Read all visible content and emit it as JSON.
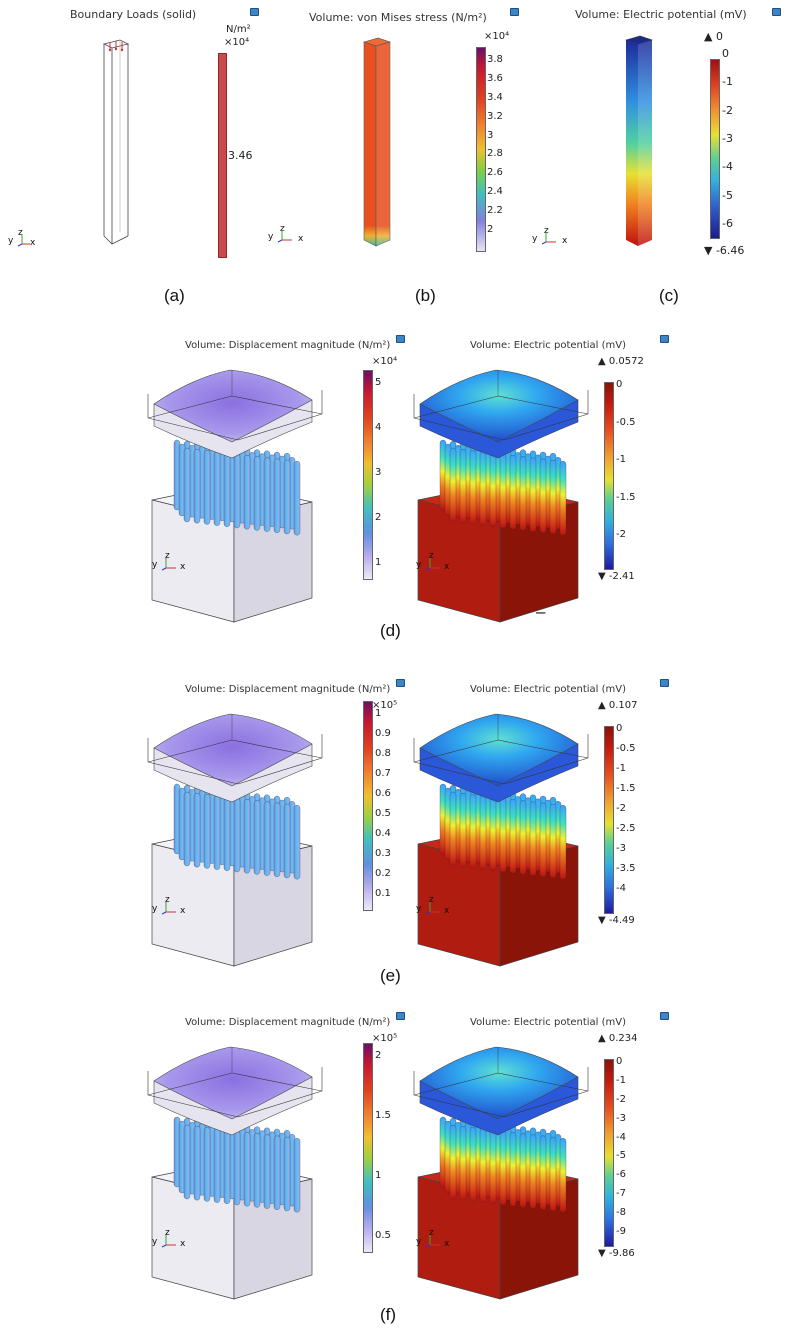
{
  "panel_a": {
    "title": "Boundary Loads (solid)",
    "unit_line1": "N/m²",
    "unit_line2": "×10⁴",
    "value_label": "3.46",
    "caption": "(a)"
  },
  "panel_b": {
    "title": "Volume: von Mises stress (N/m²)",
    "multiplier": "×10⁴",
    "ticks": [
      "3.8",
      "3.6",
      "3.4",
      "3.2",
      "3",
      "2.8",
      "2.6",
      "2.4",
      "2.2",
      "2"
    ],
    "caption": "(b)"
  },
  "panel_c": {
    "title": "Volume: Electric potential (mV)",
    "max_marker": "▲ 0",
    "min_marker": "▼ -6.46",
    "ticks": [
      "0",
      "-1",
      "-2",
      "-3",
      "-4",
      "-5",
      "-6"
    ],
    "caption": "(c)"
  },
  "row_d": {
    "disp_title": "Volume: Displacement magnitude (N/m²)",
    "disp_multiplier": "×10⁴",
    "disp_ticks": [
      "5",
      "4",
      "3",
      "2",
      "1"
    ],
    "pot_title": "Volume: Electric potential (mV)",
    "max_marker": "▲ 0.0572",
    "min_marker": "▼ -2.41",
    "pot_ticks": [
      "0",
      "-0.5",
      "-1",
      "-1.5",
      "-2"
    ],
    "caption": "(d)",
    "stray_mark": "–"
  },
  "row_e": {
    "disp_title": "Volume: Displacement magnitude (N/m²)",
    "disp_multiplier": "×10⁵",
    "disp_ticks": [
      "1",
      "0.9",
      "0.8",
      "0.7",
      "0.6",
      "0.5",
      "0.4",
      "0.3",
      "0.2",
      "0.1"
    ],
    "pot_title": "Volume: Electric potential (mV)",
    "max_marker": "▲ 0.107",
    "min_marker": "▼ -4.49",
    "pot_ticks": [
      "0",
      "-0.5",
      "-1",
      "-1.5",
      "-2",
      "-2.5",
      "-3",
      "-3.5",
      "-4"
    ],
    "caption": "(e)"
  },
  "row_f": {
    "disp_title": "Volume: Displacement magnitude (N/m²)",
    "disp_multiplier": "×10⁵",
    "disp_ticks": [
      "2",
      "1.5",
      "1",
      "0.5"
    ],
    "pot_title": "Volume: Electric potential (mV)",
    "max_marker": "▲ 0.234",
    "min_marker": "▼ -9.86",
    "pot_ticks": [
      "0",
      "-1",
      "-2",
      "-3",
      "-4",
      "-5",
      "-6",
      "-7",
      "-8",
      "-9"
    ],
    "caption": "(f)"
  },
  "axes": {
    "y": "y",
    "z": "z",
    "x": "x"
  },
  "colors": {
    "boundary_load_bar": "#c84a4a",
    "stress_column": "#e8501f",
    "potential_column_top": "#1c2a9a",
    "substrate_potential": "#a61c10",
    "substrate_displacement": "#e9e6f0"
  },
  "icons": {
    "camera": "camera-icon"
  }
}
